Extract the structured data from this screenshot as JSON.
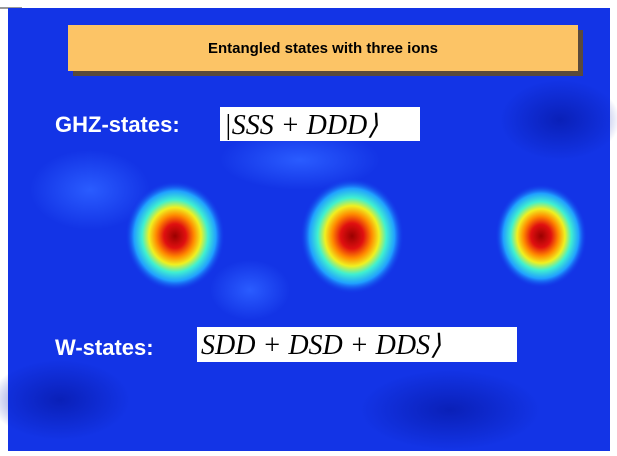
{
  "slide": {
    "title": "Entangled states with three ions",
    "states": [
      {
        "label": "GHZ-states:",
        "expression": "|SSS + DDD⟩"
      },
      {
        "label": "W-states:",
        "expression": "SDD + DSD + DDS⟩"
      }
    ]
  }
}
